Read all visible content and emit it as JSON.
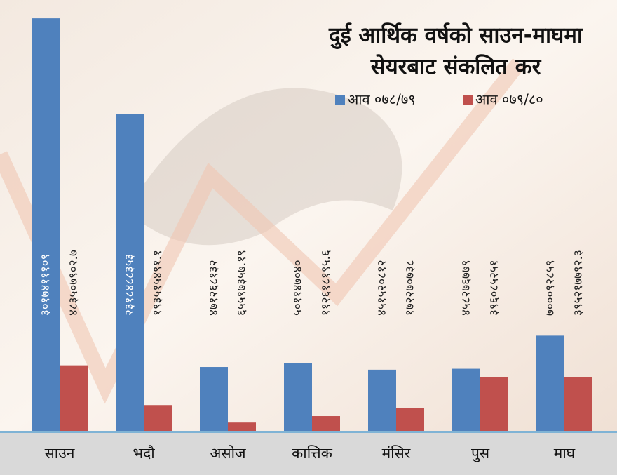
{
  "chart_data": {
    "type": "bar",
    "title": [
      "दुई आर्थिक वर्षको साउन-माघमा",
      "सेयरबाट संकलित कर"
    ],
    "categories": [
      "साउन",
      "भदौ",
      "असोज",
      "कात्तिक",
      "मंसिर",
      "पुस",
      "माघ"
    ],
    "series": [
      {
        "name": "आव ०७८/७९",
        "color": "#4f81bd",
        "values": [
          3017411109,
          2318488353,
          471268132,
          501147040,
          451520812,
          458276779,
          700092859
        ],
        "value_labels": [
          "३०१७४१११०९",
          "२३१८४८८३५३",
          "४७१२६८१३२",
          "५०११४७०४०",
          "४५१५२०८१२",
          "४५८२७६७७९",
          "७०००९२८५९"
        ]
      },
      {
        "name": "आव ०७९/८०",
        "color": "#c0504d",
        "values": [
          483507902.7,
          193515491.1,
          65597357.19,
          112618195.6,
          172270738,
          396085251,
          395217792.3
        ],
        "value_labels": [
          "४८३५०७९०२.७",
          "१९३५१५४९१.१",
          "६५५९७३५७.१९",
          "११२६१८१९५.६",
          "१७२२७०७३८",
          "३९६०८५२५१",
          "३९५२१७७९२.३"
        ]
      }
    ],
    "ylim": [
      0,
      3100000000
    ],
    "legend": "top-right"
  }
}
